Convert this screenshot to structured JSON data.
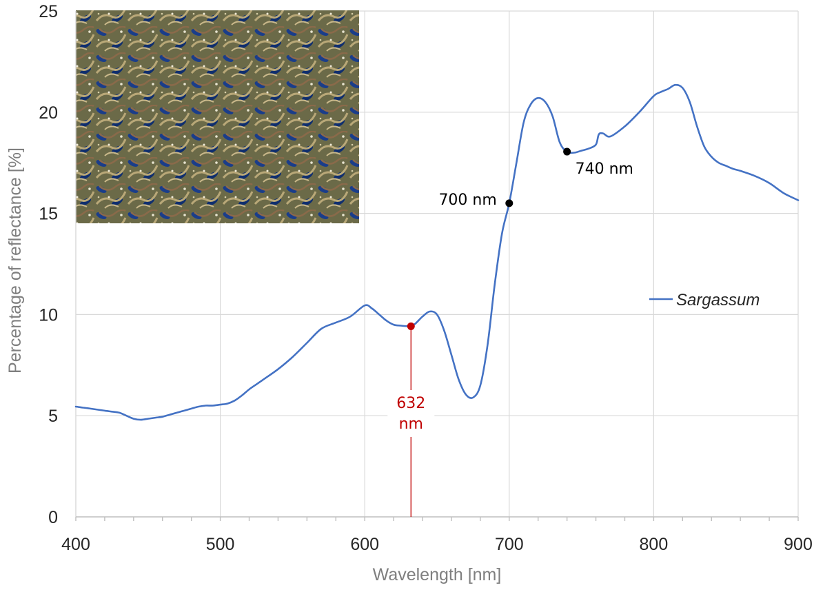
{
  "chart_data": {
    "type": "line",
    "xlabel": "Wavelength [nm]",
    "ylabel": "Percentage of reflectance [%]",
    "xlim": [
      400,
      900
    ],
    "ylim": [
      0,
      25
    ],
    "x_ticks": [
      400,
      500,
      600,
      700,
      800,
      900
    ],
    "y_ticks": [
      0,
      5,
      10,
      15,
      20,
      25
    ],
    "grid": "major",
    "legend_position": "right",
    "colors": {
      "series": "#4472c4",
      "highlight": "#c00000",
      "marker": "#000000",
      "grid": "#d9d9d9"
    },
    "inset_photo": "sargassum-photo",
    "series": [
      {
        "name": "Sargassum",
        "x": [
          400,
          405,
          410,
          415,
          420,
          425,
          430,
          435,
          440,
          445,
          450,
          455,
          460,
          465,
          470,
          475,
          480,
          485,
          490,
          495,
          500,
          505,
          510,
          515,
          520,
          525,
          530,
          540,
          550,
          560,
          570,
          580,
          590,
          600,
          605,
          610,
          615,
          620,
          625,
          630,
          632,
          635,
          640,
          645,
          650,
          655,
          660,
          665,
          670,
          675,
          680,
          685,
          690,
          695,
          700,
          705,
          710,
          715,
          720,
          725,
          730,
          735,
          740,
          745,
          750,
          755,
          760,
          762,
          765,
          770,
          780,
          790,
          800,
          805,
          810,
          815,
          820,
          825,
          830,
          835,
          840,
          845,
          850,
          855,
          860,
          870,
          880,
          890,
          900
        ],
        "values": [
          5.45,
          5.4,
          5.35,
          5.3,
          5.25,
          5.2,
          5.15,
          5.0,
          4.85,
          4.8,
          4.85,
          4.9,
          4.95,
          5.05,
          5.15,
          5.25,
          5.35,
          5.45,
          5.5,
          5.5,
          5.55,
          5.6,
          5.75,
          6.0,
          6.3,
          6.55,
          6.8,
          7.3,
          7.9,
          8.6,
          9.3,
          9.6,
          9.9,
          10.45,
          10.3,
          10.0,
          9.7,
          9.5,
          9.45,
          9.42,
          9.42,
          9.55,
          9.9,
          10.15,
          10.0,
          9.2,
          8.0,
          6.8,
          6.05,
          5.9,
          6.5,
          8.5,
          11.5,
          14.0,
          15.5,
          17.5,
          19.5,
          20.4,
          20.7,
          20.5,
          19.8,
          18.5,
          18.05,
          18.0,
          18.1,
          18.2,
          18.4,
          18.9,
          18.95,
          18.8,
          19.3,
          20.0,
          20.8,
          21.0,
          21.15,
          21.35,
          21.2,
          20.5,
          19.3,
          18.3,
          17.8,
          17.5,
          17.35,
          17.2,
          17.1,
          16.85,
          16.5,
          16.0,
          15.65
        ]
      }
    ],
    "annotations": [
      {
        "x": 632,
        "y": 9.42,
        "label_lines": [
          "632",
          "nm"
        ],
        "color": "red",
        "drop_line": true
      },
      {
        "x": 700,
        "y": 15.5,
        "label": "700 nm",
        "color": "black",
        "side": "left"
      },
      {
        "x": 740,
        "y": 18.05,
        "label": "740 nm",
        "color": "black",
        "side": "below-right"
      }
    ]
  }
}
